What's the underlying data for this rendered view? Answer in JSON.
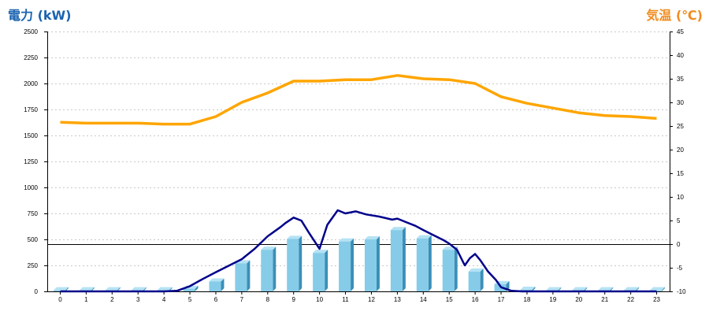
{
  "chart_data": {
    "type": "bar",
    "title": "",
    "y_left": {
      "label": "電力 (kW)",
      "ylim": [
        0,
        2500
      ],
      "ticks": [
        0,
        250,
        500,
        750,
        1000,
        1250,
        1500,
        1750,
        2000,
        2250,
        2500
      ]
    },
    "y_right": {
      "label": "気温 (℃)",
      "ylim": [
        -10,
        45
      ],
      "ticks": [
        -10,
        -5,
        0,
        5,
        10,
        15,
        20,
        25,
        30,
        35,
        40,
        45
      ]
    },
    "categories": [
      "0",
      "1",
      "2",
      "3",
      "4",
      "5",
      "6",
      "7",
      "8",
      "9",
      "10",
      "11",
      "12",
      "13",
      "14",
      "15",
      "16",
      "17",
      "18",
      "19",
      "20",
      "21",
      "22",
      "23"
    ],
    "series": [
      {
        "type": "bar",
        "axis": "left",
        "values": [
          10,
          10,
          10,
          10,
          10,
          25,
          95,
          270,
          400,
          505,
          370,
          480,
          500,
          590,
          510,
          400,
          190,
          70,
          15,
          10,
          10,
          10,
          10,
          10
        ]
      },
      {
        "type": "line",
        "axis": "left",
        "x": [
          0,
          2,
          4,
          4.5,
          5,
          5.5,
          6,
          7,
          7.5,
          8,
          8.5,
          8.7,
          9,
          9.3,
          9.6,
          10,
          10.3,
          10.7,
          11,
          11.4,
          11.8,
          12.3,
          12.8,
          13,
          13.3,
          13.7,
          14,
          14.4,
          14.8,
          15,
          15.3,
          15.5,
          15.6,
          15.8,
          16,
          16.2,
          16.5,
          16.8,
          17,
          17.4,
          17.8,
          18,
          20,
          23
        ],
        "values": [
          0,
          0,
          0,
          5,
          50,
          120,
          185,
          310,
          410,
          530,
          620,
          660,
          710,
          680,
          560,
          410,
          640,
          780,
          750,
          770,
          740,
          720,
          690,
          700,
          670,
          630,
          590,
          540,
          490,
          460,
          400,
          300,
          250,
          320,
          360,
          300,
          190,
          110,
          40,
          5,
          0,
          0,
          0,
          0
        ]
      },
      {
        "type": "line",
        "axis": "right",
        "x": [
          0,
          1,
          2,
          3,
          4,
          5,
          6,
          7,
          8,
          9,
          10,
          11,
          12,
          13,
          14,
          15,
          16,
          17,
          18,
          19,
          20,
          21,
          22,
          23
        ],
        "values": [
          25.8,
          25.6,
          25.6,
          25.6,
          25.4,
          25.4,
          27,
          30,
          32,
          34.5,
          34.5,
          34.8,
          34.8,
          35.7,
          35,
          34.8,
          34,
          31.2,
          29.8,
          28.8,
          27.8,
          27.2,
          27,
          26.6
        ]
      }
    ],
    "colors": {
      "bar": "#86cce8",
      "bar_side": "#3a8fb8",
      "power_line": "#00008b",
      "temperature_line": "#ffa500",
      "left_title": "#1a63b0",
      "right_title": "#f08c1e"
    },
    "grid": true
  }
}
